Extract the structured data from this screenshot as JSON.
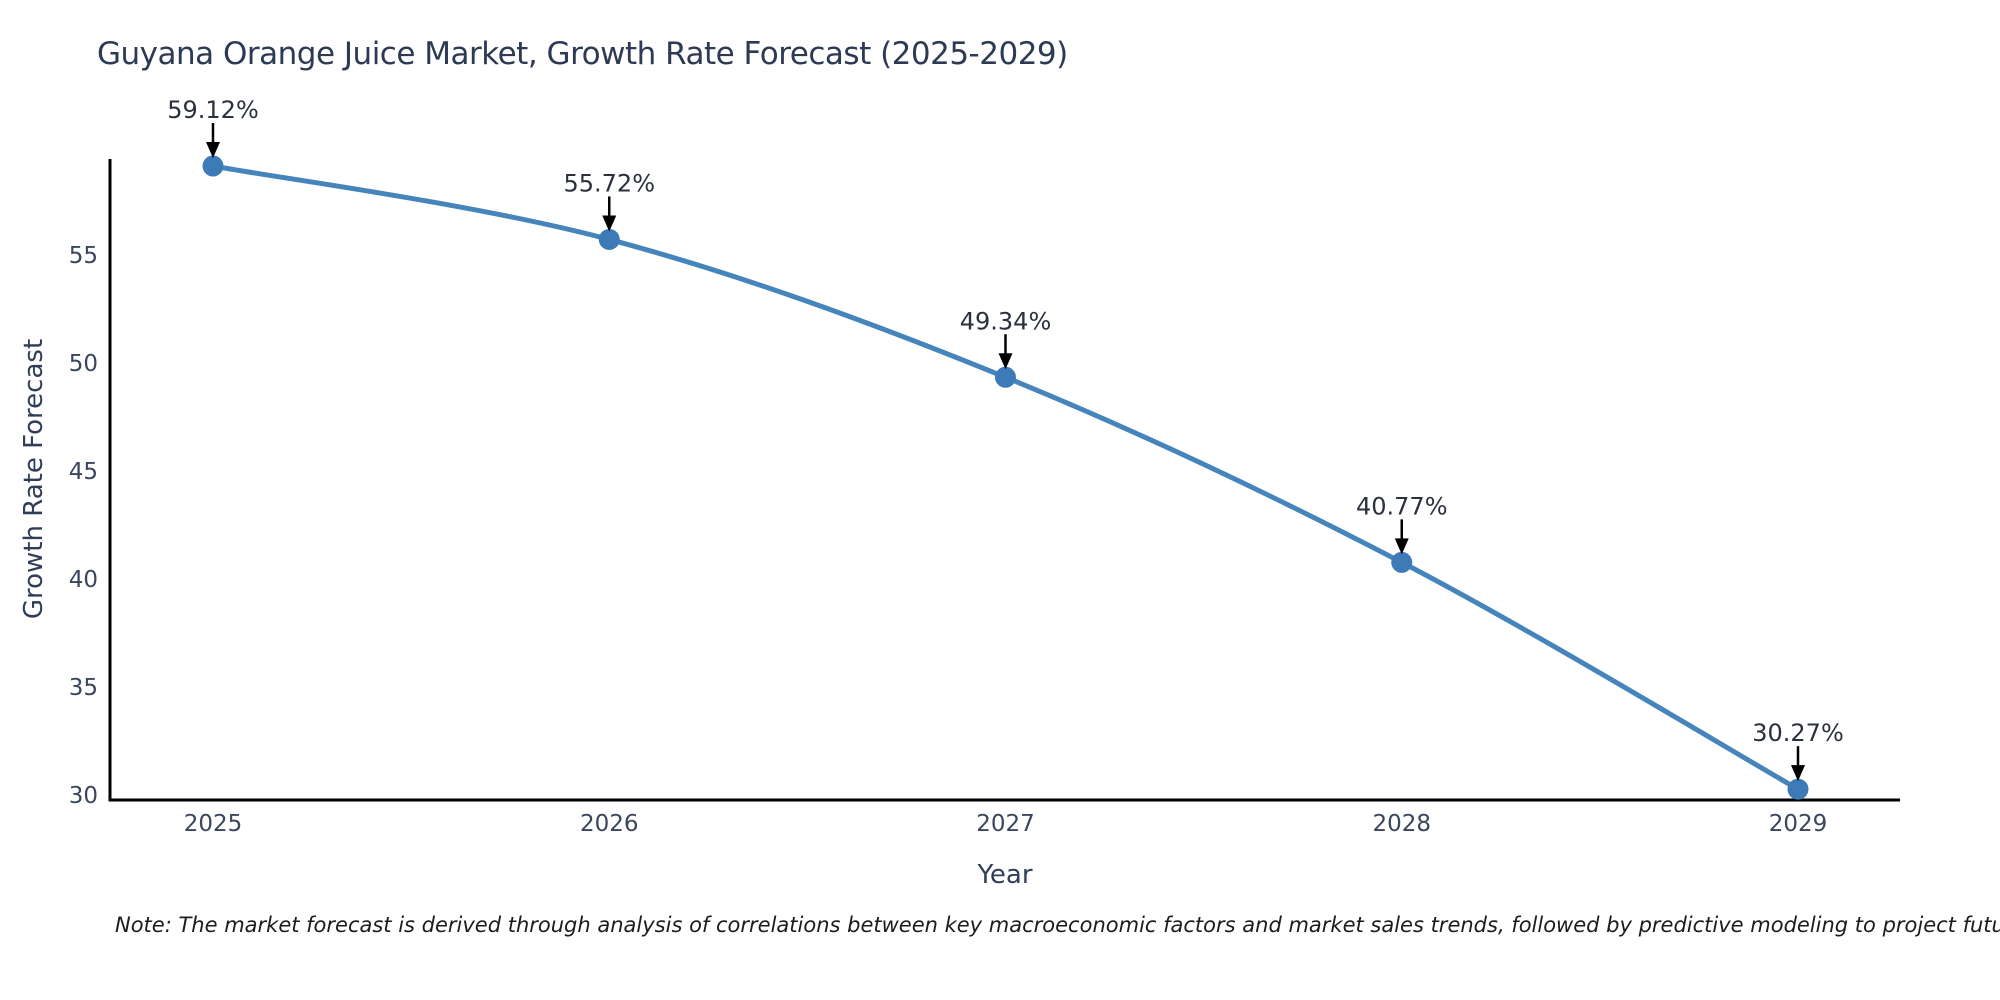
{
  "title": "Guyana Orange Juice Market, Growth Rate Forecast (2025-2029)",
  "note": "Note: The market forecast is derived through analysis of correlations between key macroeconomic factors and market sales trends, followed by predictive modeling to project future sales",
  "chart_data": {
    "type": "line",
    "title": "Guyana Orange Juice Market, Growth Rate Forecast (2025-2029)",
    "xlabel": "Year",
    "ylabel": "Growth Rate Forecast",
    "categories": [
      "2025",
      "2026",
      "2027",
      "2028",
      "2029"
    ],
    "series": [
      {
        "name": "Growth Rate Forecast",
        "values": [
          59.12,
          55.72,
          49.34,
          40.77,
          30.27
        ],
        "point_labels": [
          "59.12%",
          "55.72%",
          "49.34%",
          "40.77%",
          "30.27%"
        ]
      }
    ],
    "y_ticks": [
      30,
      35,
      40,
      45,
      50,
      55
    ],
    "ylim": [
      29.77,
      59.9
    ],
    "grid": false,
    "legend_position": "none",
    "line_shape": "spline",
    "colors": {
      "line": "#4685bc",
      "marker": "#3d7ab8",
      "axis": "#000000",
      "tick_text": "#3a465c",
      "annotation_text": "#2a313c",
      "annotation_arrow": "#000000",
      "title_text": "#2c3a54"
    }
  }
}
